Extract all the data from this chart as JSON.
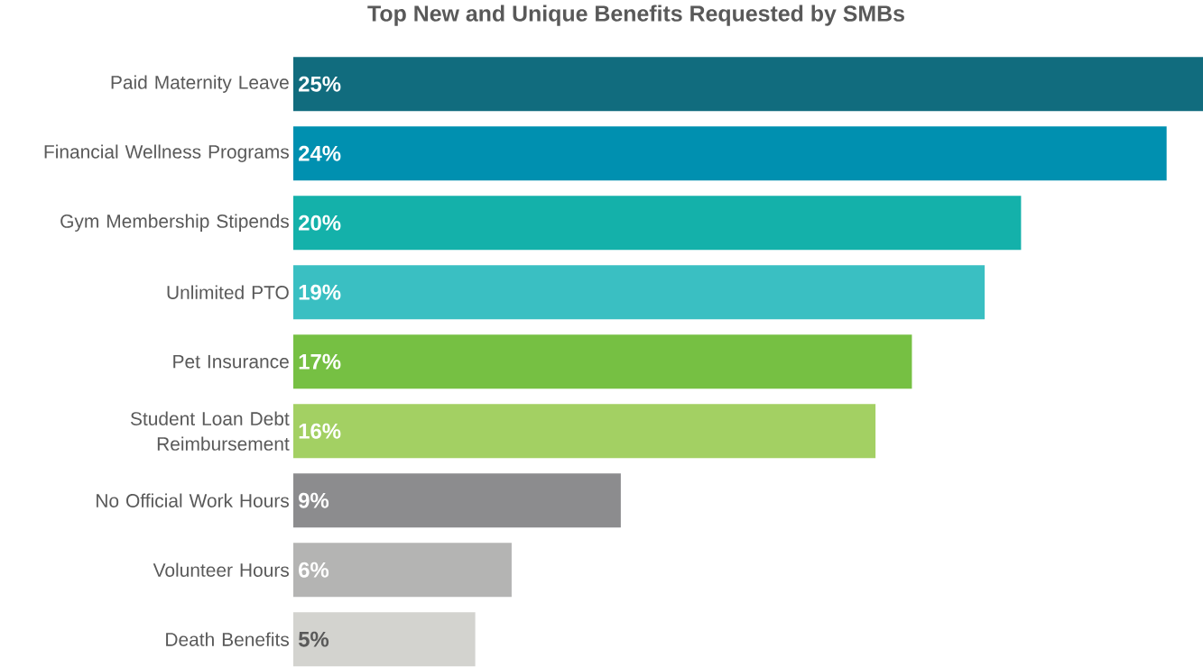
{
  "chart_data": {
    "type": "bar",
    "orientation": "horizontal",
    "title": "Top New and Unique Benefits Requested by SMBs",
    "categories": [
      "Paid Maternity Leave",
      "Financial Wellness Programs",
      "Gym Membership Stipends",
      "Unlimited PTO",
      "Pet Insurance",
      "Student Loan Debt Reimbursement",
      "No Official Work Hours",
      "Volunteer Hours",
      "Death Benefits"
    ],
    "values": [
      25,
      24,
      20,
      19,
      17,
      16,
      9,
      6,
      5
    ],
    "value_labels": [
      "25%",
      "24%",
      "20%",
      "19%",
      "17%",
      "16%",
      "9%",
      "6%",
      "5%"
    ],
    "colors": [
      "#116c7e",
      "#0090b0",
      "#14b1aa",
      "#3abfc2",
      "#76c043",
      "#a3d063",
      "#8c8c8e",
      "#b4b4b3",
      "#d3d3cf"
    ],
    "xlim": [
      0,
      25
    ],
    "tick_labels": "y"
  }
}
